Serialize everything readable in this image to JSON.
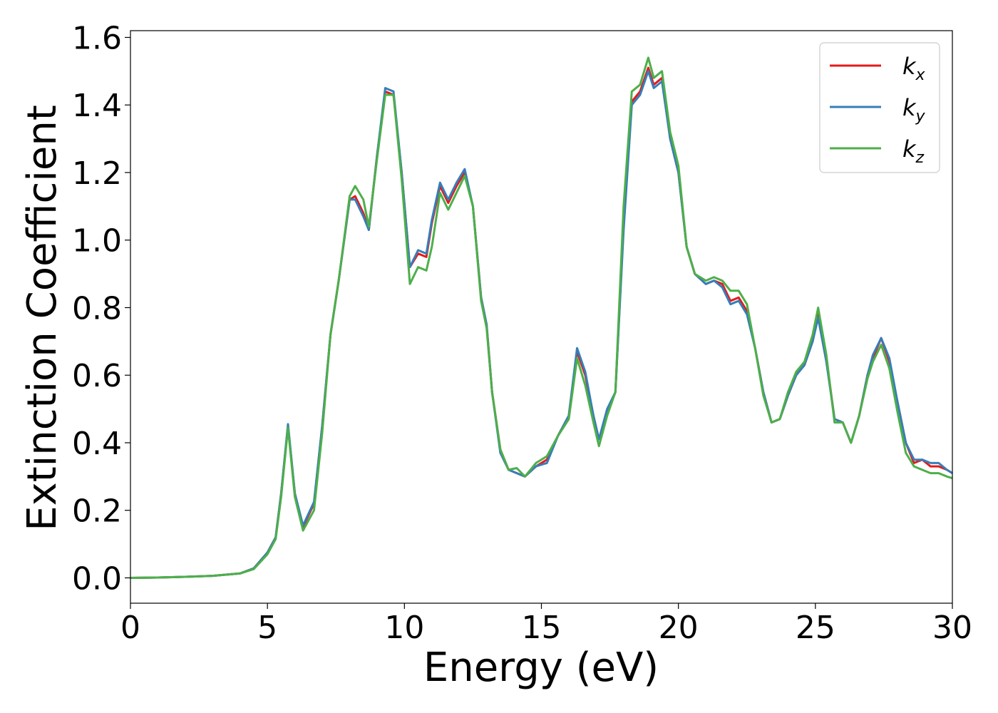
{
  "chart_data": {
    "type": "line",
    "xlabel": "Energy (eV)",
    "ylabel": "Extinction Coefficient",
    "xlim": [
      0,
      30
    ],
    "ylim": [
      -0.075,
      1.62
    ],
    "xticks": [
      0,
      5,
      10,
      15,
      20,
      25,
      30
    ],
    "yticks": [
      0.0,
      0.2,
      0.4,
      0.6,
      0.8,
      1.0,
      1.2,
      1.4,
      1.6
    ],
    "xtick_labels": [
      "0",
      "5",
      "10",
      "15",
      "20",
      "25",
      "30"
    ],
    "ytick_labels": [
      "0.0",
      "0.2",
      "0.4",
      "0.6",
      "0.8",
      "1.0",
      "1.2",
      "1.4",
      "1.6"
    ],
    "grid": false,
    "legend_position": "top-right",
    "x": [
      0,
      1,
      2,
      3,
      4,
      4.5,
      5,
      5.3,
      5.5,
      5.75,
      6.0,
      6.3,
      6.7,
      7.0,
      7.3,
      7.6,
      8.0,
      8.2,
      8.5,
      8.7,
      9.0,
      9.3,
      9.6,
      9.9,
      10.2,
      10.5,
      10.8,
      11.0,
      11.3,
      11.6,
      11.9,
      12.2,
      12.5,
      12.8,
      13.0,
      13.2,
      13.5,
      13.8,
      14.1,
      14.4,
      14.8,
      15.2,
      15.6,
      16.0,
      16.3,
      16.6,
      16.9,
      17.1,
      17.4,
      17.7,
      18.0,
      18.3,
      18.6,
      18.9,
      19.1,
      19.4,
      19.7,
      20.0,
      20.3,
      20.6,
      21.0,
      21.3,
      21.6,
      21.9,
      22.2,
      22.5,
      22.8,
      23.1,
      23.4,
      23.7,
      24.0,
      24.3,
      24.6,
      24.9,
      25.1,
      25.4,
      25.7,
      26.0,
      26.3,
      26.6,
      26.9,
      27.1,
      27.4,
      27.7,
      28.0,
      28.3,
      28.6,
      28.9,
      29.2,
      29.5,
      29.8,
      30.0
    ],
    "series": [
      {
        "name": "x",
        "color": "#e41a1c",
        "values": [
          0.0,
          0.001,
          0.003,
          0.006,
          0.013,
          0.028,
          0.075,
          0.12,
          0.25,
          0.45,
          0.25,
          0.15,
          0.22,
          0.45,
          0.72,
          0.88,
          1.12,
          1.13,
          1.08,
          1.03,
          1.25,
          1.44,
          1.43,
          1.2,
          0.92,
          0.96,
          0.95,
          1.05,
          1.16,
          1.11,
          1.16,
          1.2,
          1.1,
          0.83,
          0.75,
          0.55,
          0.38,
          0.32,
          0.31,
          0.3,
          0.33,
          0.35,
          0.42,
          0.48,
          0.67,
          0.6,
          0.48,
          0.41,
          0.49,
          0.55,
          1.05,
          1.41,
          1.44,
          1.51,
          1.46,
          1.48,
          1.3,
          1.2,
          0.98,
          0.9,
          0.87,
          0.88,
          0.87,
          0.82,
          0.83,
          0.79,
          0.68,
          0.55,
          0.46,
          0.47,
          0.54,
          0.6,
          0.63,
          0.7,
          0.78,
          0.65,
          0.47,
          0.46,
          0.4,
          0.48,
          0.6,
          0.65,
          0.71,
          0.64,
          0.52,
          0.4,
          0.34,
          0.35,
          0.33,
          0.33,
          0.32,
          0.31
        ]
      },
      {
        "name": "y",
        "color": "#377eb8",
        "values": [
          0.0,
          0.001,
          0.003,
          0.006,
          0.013,
          0.028,
          0.075,
          0.12,
          0.25,
          0.455,
          0.25,
          0.155,
          0.225,
          0.45,
          0.72,
          0.88,
          1.12,
          1.12,
          1.07,
          1.03,
          1.25,
          1.45,
          1.44,
          1.2,
          0.92,
          0.97,
          0.96,
          1.06,
          1.17,
          1.12,
          1.17,
          1.21,
          1.1,
          0.83,
          0.75,
          0.55,
          0.37,
          0.32,
          0.31,
          0.3,
          0.33,
          0.34,
          0.42,
          0.48,
          0.68,
          0.61,
          0.48,
          0.41,
          0.5,
          0.55,
          1.03,
          1.4,
          1.43,
          1.5,
          1.45,
          1.47,
          1.3,
          1.2,
          0.98,
          0.9,
          0.87,
          0.88,
          0.86,
          0.81,
          0.82,
          0.78,
          0.68,
          0.55,
          0.46,
          0.47,
          0.54,
          0.6,
          0.63,
          0.7,
          0.77,
          0.64,
          0.47,
          0.46,
          0.4,
          0.48,
          0.6,
          0.66,
          0.71,
          0.65,
          0.52,
          0.4,
          0.35,
          0.35,
          0.34,
          0.34,
          0.32,
          0.31
        ]
      },
      {
        "name": "z",
        "color": "#4daf4a",
        "values": [
          0.0,
          0.001,
          0.003,
          0.006,
          0.013,
          0.026,
          0.07,
          0.115,
          0.24,
          0.445,
          0.24,
          0.14,
          0.2,
          0.43,
          0.72,
          0.88,
          1.13,
          1.16,
          1.12,
          1.04,
          1.24,
          1.43,
          1.43,
          1.18,
          0.87,
          0.92,
          0.91,
          0.98,
          1.14,
          1.09,
          1.14,
          1.19,
          1.1,
          0.82,
          0.74,
          0.55,
          0.38,
          0.32,
          0.325,
          0.3,
          0.34,
          0.36,
          0.42,
          0.47,
          0.65,
          0.57,
          0.46,
          0.39,
          0.48,
          0.55,
          1.1,
          1.44,
          1.46,
          1.54,
          1.48,
          1.5,
          1.32,
          1.22,
          0.98,
          0.9,
          0.88,
          0.89,
          0.88,
          0.85,
          0.85,
          0.81,
          0.68,
          0.54,
          0.46,
          0.47,
          0.55,
          0.61,
          0.64,
          0.72,
          0.8,
          0.66,
          0.46,
          0.46,
          0.4,
          0.48,
          0.59,
          0.64,
          0.69,
          0.62,
          0.49,
          0.37,
          0.33,
          0.32,
          0.31,
          0.31,
          0.3,
          0.295
        ]
      }
    ]
  }
}
